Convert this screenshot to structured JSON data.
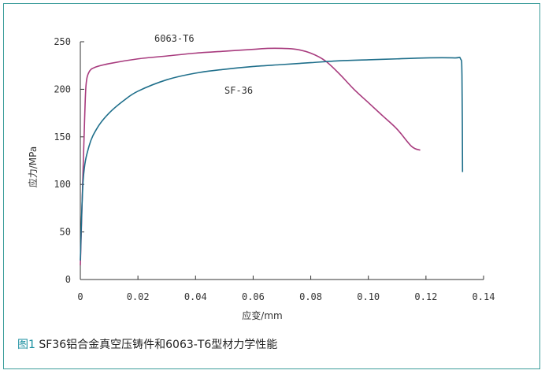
{
  "figure": {
    "caption_figno": "图1",
    "caption_text": " SF36铝合金真空压铸件和6063-T6型材力学性能"
  },
  "colors": {
    "frame": "#3a9c9a",
    "series_6063": "#a83b7e",
    "series_sf36": "#1f6f8b",
    "axis": "#333333"
  },
  "chart_data": {
    "type": "line",
    "xlabel": "应变/mm",
    "ylabel": "应力/MPa",
    "xlim": [
      0,
      0.14
    ],
    "ylim": [
      0,
      250
    ],
    "xticks": [
      "0",
      "0.02",
      "0.04",
      "0.06",
      "0.08",
      "0.10",
      "0.12",
      "0.14"
    ],
    "yticks": [
      "0",
      "50",
      "100",
      "150",
      "200",
      "250"
    ],
    "grid": false,
    "series": [
      {
        "name": "6063-T6",
        "color": "#a83b7e",
        "x": [
          0,
          0.0008,
          0.0015,
          0.002,
          0.003,
          0.005,
          0.01,
          0.02,
          0.03,
          0.04,
          0.05,
          0.06,
          0.065,
          0.07,
          0.075,
          0.08,
          0.085,
          0.09,
          0.095,
          0.1,
          0.105,
          0.11,
          0.115,
          0.118
        ],
        "y": [
          15,
          100,
          170,
          205,
          218,
          223,
          227,
          232,
          235,
          238,
          240,
          242,
          243,
          243,
          242,
          238,
          230,
          216,
          200,
          186,
          172,
          158,
          140,
          136
        ]
      },
      {
        "name": "SF-36",
        "color": "#1f6f8b",
        "x": [
          0,
          0.001,
          0.003,
          0.006,
          0.01,
          0.015,
          0.02,
          0.03,
          0.04,
          0.05,
          0.06,
          0.07,
          0.08,
          0.09,
          0.1,
          0.11,
          0.12,
          0.13,
          0.132,
          0.1325,
          0.1327
        ],
        "y": [
          20,
          105,
          140,
          160,
          175,
          188,
          198,
          210,
          217,
          221,
          224,
          226,
          228,
          230,
          231,
          232,
          233,
          233,
          232,
          215,
          113
        ]
      }
    ]
  }
}
